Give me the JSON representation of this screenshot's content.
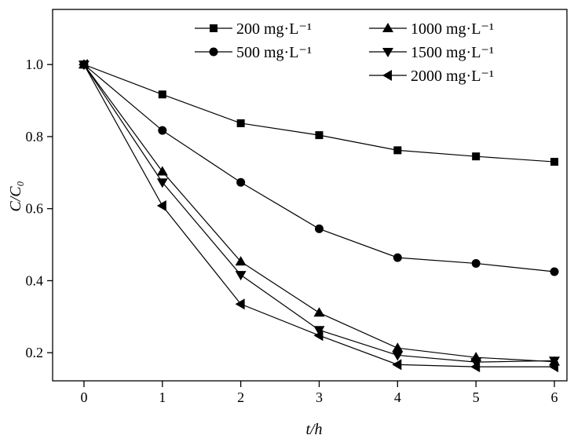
{
  "chart_data": {
    "type": "line",
    "title": "",
    "xlabel": "t/h",
    "ylabel": "C/C₀",
    "xlim": [
      -0.4,
      6.16
    ],
    "ylim": [
      0.122,
      1.153
    ],
    "x_ticks": [
      0,
      1,
      2,
      3,
      4,
      5,
      6
    ],
    "y_ticks": [
      0.2,
      0.4,
      0.6,
      0.8,
      1.0
    ],
    "y_tick_labels": [
      "0.2",
      "0.4",
      "0.6",
      "0.8",
      "1.0"
    ],
    "grid": false,
    "legend_position": "top-right",
    "x": [
      0,
      1,
      2,
      3,
      4,
      5,
      6
    ],
    "series": [
      {
        "name": "200 mg·L⁻¹",
        "marker": "square",
        "values": [
          1.0,
          0.917,
          0.837,
          0.804,
          0.762,
          0.745,
          0.73
        ]
      },
      {
        "name": "500 mg·L⁻¹",
        "marker": "circle",
        "values": [
          1.0,
          0.817,
          0.673,
          0.544,
          0.464,
          0.448,
          0.425
        ]
      },
      {
        "name": "1000 mg·L⁻¹",
        "marker": "triangle-up",
        "values": [
          1.0,
          0.703,
          0.453,
          0.311,
          0.213,
          0.187,
          0.175
        ]
      },
      {
        "name": "1500 mg·L⁻¹",
        "marker": "triangle-down",
        "values": [
          1.0,
          0.673,
          0.416,
          0.263,
          0.193,
          0.174,
          0.178
        ]
      },
      {
        "name": "2000 mg·L⁻¹",
        "marker": "triangle-left",
        "values": [
          1.0,
          0.608,
          0.335,
          0.248,
          0.167,
          0.161,
          0.161
        ]
      }
    ]
  }
}
